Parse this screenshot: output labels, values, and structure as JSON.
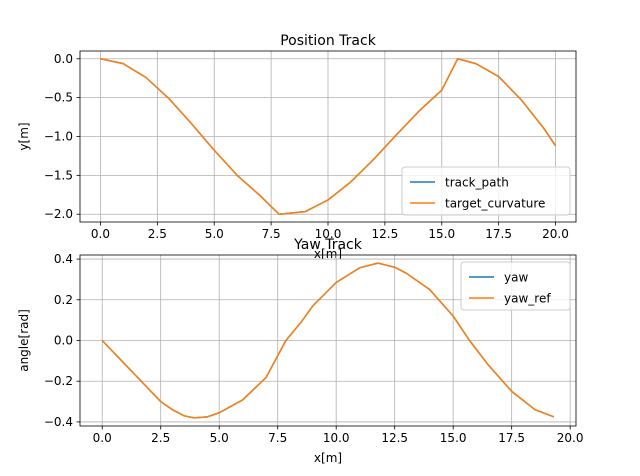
{
  "chart_data": [
    {
      "type": "line",
      "title": "Position Track",
      "xlabel": "x[m]",
      "ylabel": "y[m]",
      "xlim": [
        -0.9,
        20.9
      ],
      "ylim": [
        -2.1,
        0.1
      ],
      "xticks": [
        0.0,
        2.5,
        5.0,
        7.5,
        10.0,
        12.5,
        15.0,
        17.5,
        20.0
      ],
      "xtick_labels": [
        "0.0",
        "2.5",
        "5.0",
        "7.5",
        "10.0",
        "12.5",
        "15.0",
        "17.5",
        "20.0"
      ],
      "yticks": [
        0.0,
        -0.5,
        -1.0,
        -1.5,
        -2.0
      ],
      "ytick_labels": [
        "0.0",
        "−0.5",
        "−1.0",
        "−1.5",
        "−2.0"
      ],
      "grid": true,
      "legend": "lower-right",
      "series": [
        {
          "name": "track_path",
          "color": "#1f77b4",
          "x": [
            0,
            1,
            2,
            3,
            4,
            5,
            6,
            7,
            7.85,
            9,
            10,
            11,
            12,
            13,
            14,
            15,
            15.7,
            16.5,
            17.5,
            18.5,
            19.5,
            20.0
          ],
          "y": [
            0.0,
            -0.063,
            -0.241,
            -0.51,
            -0.835,
            -1.177,
            -1.497,
            -1.757,
            -2.0,
            -1.966,
            -1.817,
            -1.585,
            -1.296,
            -0.981,
            -0.673,
            -0.404,
            0.0,
            -0.062,
            -0.229,
            -0.53,
            -0.901,
            -1.12
          ]
        },
        {
          "name": "target_curvature",
          "color": "#ff7f0e",
          "x": [
            0,
            1,
            2,
            3,
            4,
            5,
            6,
            7,
            7.85,
            9,
            10,
            11,
            12,
            13,
            14,
            15,
            15.7,
            16.5,
            17.5,
            18.5,
            19.5,
            20.0
          ],
          "y": [
            0.0,
            -0.063,
            -0.241,
            -0.51,
            -0.835,
            -1.177,
            -1.497,
            -1.757,
            -2.0,
            -1.966,
            -1.817,
            -1.585,
            -1.296,
            -0.981,
            -0.673,
            -0.404,
            0.0,
            -0.062,
            -0.229,
            -0.53,
            -0.901,
            -1.12
          ]
        }
      ]
    },
    {
      "type": "line",
      "title": "Yaw Track",
      "xlabel": "x[m]",
      "ylabel": "angle[rad]",
      "xlim": [
        -0.95,
        20.25
      ],
      "ylim": [
        -0.42,
        0.42
      ],
      "xticks": [
        0.0,
        2.5,
        5.0,
        7.5,
        10.0,
        12.5,
        15.0,
        17.5,
        20.0
      ],
      "xtick_labels": [
        "0.0",
        "2.5",
        "5.0",
        "7.5",
        "10.0",
        "12.5",
        "15.0",
        "17.5",
        "20.0"
      ],
      "yticks": [
        0.4,
        0.2,
        0.0,
        -0.2,
        -0.4
      ],
      "ytick_labels": [
        "0.4",
        "0.2",
        "0.0",
        "−0.2",
        "−0.4"
      ],
      "grid": true,
      "legend": "top-right",
      "series": [
        {
          "name": "yaw",
          "color": "#1f77b4",
          "x": [
            0,
            0.5,
            1,
            1.5,
            2,
            2.5,
            3,
            3.5,
            3.93,
            4.5,
            5,
            6,
            7,
            7.85,
            8.5,
            9,
            10,
            11,
            11.78,
            12.5,
            13,
            14,
            15,
            15.7,
            16.5,
            17.5,
            18.5,
            19.3
          ],
          "y": [
            0.0,
            -0.06,
            -0.12,
            -0.18,
            -0.24,
            -0.3,
            -0.34,
            -0.37,
            -0.38,
            -0.375,
            -0.355,
            -0.292,
            -0.182,
            0.0,
            0.09,
            0.17,
            0.285,
            0.357,
            0.38,
            0.36,
            0.33,
            0.25,
            0.12,
            0.0,
            -0.12,
            -0.25,
            -0.34,
            -0.375
          ]
        },
        {
          "name": "yaw_ref",
          "color": "#ff7f0e",
          "x": [
            0,
            0.5,
            1,
            1.5,
            2,
            2.5,
            3,
            3.5,
            3.93,
            4.5,
            5,
            6,
            7,
            7.85,
            8.5,
            9,
            10,
            11,
            11.78,
            12.5,
            13,
            14,
            15,
            15.7,
            16.5,
            17.5,
            18.5,
            19.3
          ],
          "y": [
            0.0,
            -0.06,
            -0.12,
            -0.18,
            -0.24,
            -0.3,
            -0.34,
            -0.37,
            -0.38,
            -0.375,
            -0.355,
            -0.292,
            -0.182,
            0.0,
            0.09,
            0.17,
            0.285,
            0.357,
            0.38,
            0.36,
            0.33,
            0.25,
            0.12,
            0.0,
            -0.12,
            -0.25,
            -0.34,
            -0.375
          ]
        }
      ]
    }
  ]
}
